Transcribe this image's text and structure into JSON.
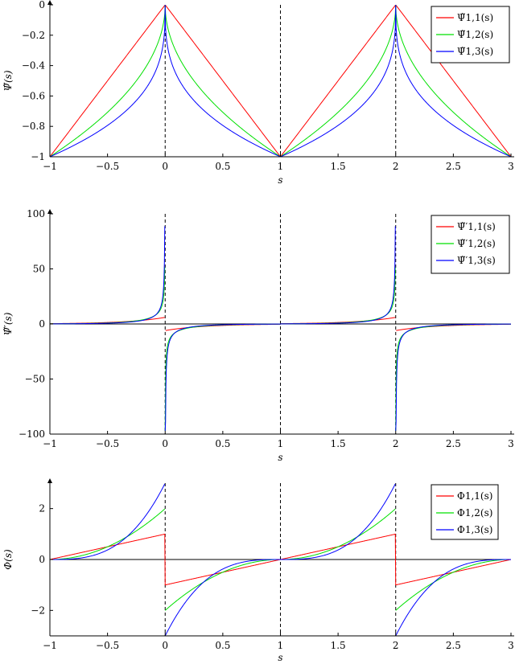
{
  "chart_data": [
    {
      "type": "line",
      "id": "psi",
      "xlabel": "s",
      "ylabel": "Ψ̃(s)",
      "xlim": [
        -1,
        3
      ],
      "ylim": [
        -1,
        0
      ],
      "xticks": [
        "−1",
        "−0.5",
        "0",
        "0.5",
        "1",
        "1.5",
        "2",
        "2.5",
        "3"
      ],
      "yticks": [
        "0",
        "−0.2",
        "−0.4",
        "−0.6",
        "−0.8",
        "−1"
      ],
      "ytick_values": [
        0,
        -0.2,
        -0.4,
        -0.6,
        -0.8,
        -1
      ],
      "vlines": [
        0,
        1,
        2
      ],
      "legend_position": "top-right",
      "series": [
        {
          "name": "Ψ̃1,1(s)",
          "color": "#ff0000",
          "k": 1
        },
        {
          "name": "Ψ̃1,2(s)",
          "color": "#00e000",
          "k": 2
        },
        {
          "name": "Ψ̃1,3(s)",
          "color": "#0000ff",
          "k": 3
        }
      ]
    },
    {
      "type": "line",
      "id": "dpsi",
      "xlabel": "s",
      "ylabel": "Ψ̃′(s)",
      "xlim": [
        -1,
        3
      ],
      "ylim": [
        -100,
        100
      ],
      "xticks": [
        "−1",
        "−0.5",
        "0",
        "0.5",
        "1",
        "1.5",
        "2",
        "2.5",
        "3"
      ],
      "yticks": [
        "100",
        "50",
        "0",
        "−50",
        "−100"
      ],
      "ytick_values": [
        100,
        50,
        0,
        -50,
        -100
      ],
      "vlines": [
        0,
        1,
        2
      ],
      "legend_position": "top-right",
      "series": [
        {
          "name": "Ψ̃′1,1(s)",
          "color": "#ff0000",
          "k": 1
        },
        {
          "name": "Ψ̃′1,2(s)",
          "color": "#00e000",
          "k": 2
        },
        {
          "name": "Ψ̃′1,3(s)",
          "color": "#0000ff",
          "k": 3
        }
      ]
    },
    {
      "type": "line",
      "id": "phi",
      "xlabel": "s",
      "ylabel": "Φ(s)",
      "xlim": [
        -1,
        3
      ],
      "ylim": [
        -3,
        3
      ],
      "xticks": [
        "−1",
        "−0.5",
        "0",
        "0.5",
        "1",
        "1.5",
        "2",
        "2.5",
        "3"
      ],
      "yticks": [
        "2",
        "0",
        "−2"
      ],
      "ytick_values": [
        2,
        0,
        -2
      ],
      "vlines": [
        0,
        1,
        2
      ],
      "legend_position": "top-right",
      "series": [
        {
          "name": "Φ1,1(s)",
          "color": "#ff0000",
          "k": 1
        },
        {
          "name": "Φ1,2(s)",
          "color": "#00e000",
          "k": 2
        },
        {
          "name": "Φ1,3(s)",
          "color": "#0000ff",
          "k": 3
        }
      ]
    }
  ]
}
